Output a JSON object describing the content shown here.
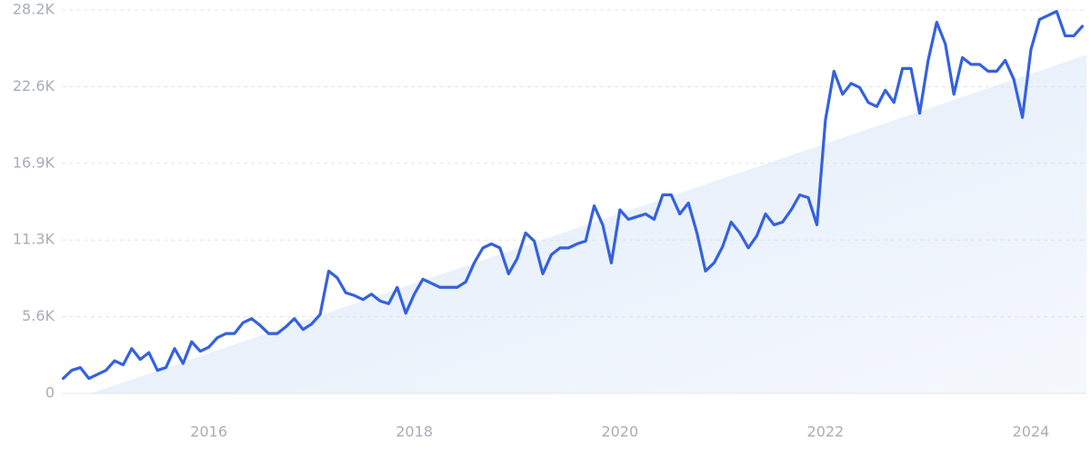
{
  "chart_data": {
    "type": "line",
    "x": [
      2014.583,
      2014.667,
      2014.75,
      2014.833,
      2014.917,
      2015,
      2015.083,
      2015.167,
      2015.25,
      2015.333,
      2015.417,
      2015.5,
      2015.583,
      2015.667,
      2015.75,
      2015.833,
      2015.917,
      2016,
      2016.083,
      2016.167,
      2016.25,
      2016.333,
      2016.417,
      2016.5,
      2016.583,
      2016.667,
      2016.75,
      2016.833,
      2016.917,
      2017,
      2017.083,
      2017.167,
      2017.25,
      2017.333,
      2017.417,
      2017.5,
      2017.583,
      2017.667,
      2017.75,
      2017.833,
      2017.917,
      2018,
      2018.083,
      2018.167,
      2018.25,
      2018.333,
      2018.417,
      2018.5,
      2018.583,
      2018.667,
      2018.75,
      2018.833,
      2018.917,
      2019,
      2019.083,
      2019.167,
      2019.25,
      2019.333,
      2019.417,
      2019.5,
      2019.583,
      2019.667,
      2019.75,
      2019.833,
      2019.917,
      2020,
      2020.083,
      2020.167,
      2020.25,
      2020.333,
      2020.417,
      2020.5,
      2020.583,
      2020.667,
      2020.75,
      2020.833,
      2020.917,
      2021,
      2021.083,
      2021.167,
      2021.25,
      2021.333,
      2021.417,
      2021.5,
      2021.583,
      2021.667,
      2021.75,
      2021.833,
      2021.917,
      2022,
      2022.083,
      2022.167,
      2022.25,
      2022.333,
      2022.417,
      2022.5,
      2022.583,
      2022.667,
      2022.75,
      2022.833,
      2022.917,
      2023,
      2023.083,
      2023.167,
      2023.25,
      2023.333,
      2023.417,
      2023.5,
      2023.583,
      2023.667,
      2023.75,
      2023.833,
      2023.917,
      2024,
      2024.083,
      2024.167,
      2024.25,
      2024.333,
      2024.417,
      2024.5
    ],
    "series": [
      {
        "color": "#3461e0",
        "values": [
          1100,
          1700,
          1900,
          1100,
          1400,
          1700,
          2400,
          2100,
          3300,
          2500,
          3000,
          1700,
          1900,
          3300,
          2200,
          3800,
          3100,
          3400,
          4100,
          4400,
          4400,
          5200,
          5500,
          5000,
          4400,
          4400,
          4900,
          5500,
          4700,
          5100,
          5800,
          9000,
          8500,
          7400,
          7200,
          6900,
          7300,
          6800,
          6600,
          7800,
          5900,
          7300,
          8400,
          8100,
          7800,
          7800,
          7800,
          8200,
          9600,
          10700,
          11000,
          10700,
          8800,
          9900,
          11800,
          11200,
          8800,
          10200,
          10700,
          10700,
          11000,
          11200,
          13800,
          12400,
          9600,
          13500,
          12800,
          13000,
          13200,
          12800,
          14600,
          14600,
          13200,
          14000,
          11800,
          9000,
          9600,
          10800,
          12600,
          11800,
          10700,
          11600,
          13200,
          12400,
          12600,
          13500,
          14600,
          14400,
          12400,
          20100,
          23700,
          22000,
          22800,
          22500,
          21400,
          21100,
          22300,
          21400,
          23900,
          23900,
          20600,
          24500,
          27300,
          25700,
          22000,
          24700,
          24200,
          24200,
          23700,
          23700,
          24500,
          23100,
          20300,
          25300,
          27500,
          27800,
          28100,
          26300,
          26300,
          27000
        ]
      }
    ],
    "trend": {
      "color": "#e3edfb",
      "x": [
        2014.85,
        2024.54
      ],
      "values": [
        0,
        24900
      ]
    },
    "xlim": [
      2014.57,
      2024.54
    ],
    "xticks": [
      2016,
      2018,
      2020,
      2022,
      2024
    ],
    "ylim": [
      0,
      28200
    ],
    "yticks": [
      0,
      {
        "value": 5640,
        "label": "5.6K"
      },
      {
        "value": 11280,
        "label": "11.3K"
      },
      {
        "value": 16920,
        "label": "16.9K"
      },
      {
        "value": 22560,
        "label": "22.6K"
      },
      {
        "value": 28200,
        "label": "28.2K"
      }
    ],
    "grid": true
  }
}
